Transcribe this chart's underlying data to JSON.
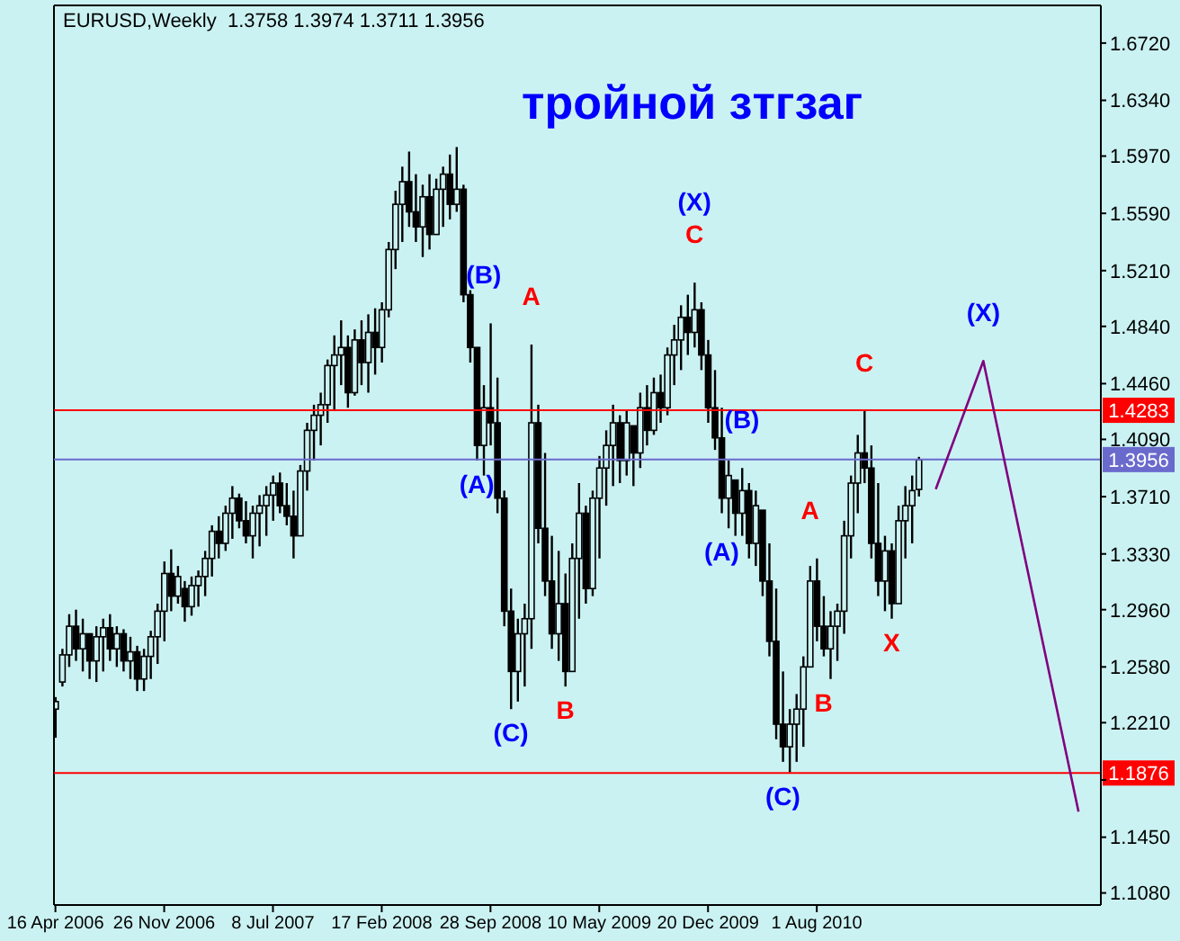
{
  "chart_data": {
    "type": "candlestick",
    "title": "тройной зтгзаг",
    "subtitle": "EURUSD,Weekly  1.3758 1.3974 1.3711 1.3956",
    "color": "#000000",
    "x": [
      "2006-04-16",
      "2006-04-30",
      "2006-05-14",
      "2006-05-28",
      "2006-06-11",
      "2006-06-25",
      "2006-07-09",
      "2006-07-23",
      "2006-08-06",
      "2006-08-20",
      "2006-09-03",
      "2006-09-17",
      "2006-10-01",
      "2006-10-15",
      "2006-10-29",
      "2006-11-12",
      "2006-11-26",
      "2006-12-10",
      "2006-12-24",
      "2007-01-07",
      "2007-01-21",
      "2007-02-04",
      "2007-02-18",
      "2007-03-04",
      "2007-03-18",
      "2007-04-01",
      "2007-04-15",
      "2007-04-29",
      "2007-05-13",
      "2007-05-27",
      "2007-06-10",
      "2007-06-24",
      "2007-07-08",
      "2007-07-22",
      "2007-08-05",
      "2007-08-19",
      "2007-09-02",
      "2007-09-16",
      "2007-09-30",
      "2007-10-14",
      "2007-10-28",
      "2007-11-11",
      "2007-11-25",
      "2007-12-09",
      "2007-12-23",
      "2008-01-06",
      "2008-01-20",
      "2008-02-03",
      "2008-02-17",
      "2008-03-02",
      "2008-03-16",
      "2008-03-30",
      "2008-04-13",
      "2008-04-27",
      "2008-05-11",
      "2008-05-25",
      "2008-06-08",
      "2008-06-22",
      "2008-07-06",
      "2008-07-20",
      "2008-08-03",
      "2008-08-17",
      "2008-08-31",
      "2008-09-14",
      "2008-09-28",
      "2008-10-12",
      "2008-10-26",
      "2008-11-09",
      "2008-11-23",
      "2008-12-07",
      "2008-12-21",
      "2009-01-04",
      "2009-01-18",
      "2009-02-01",
      "2009-02-15",
      "2009-03-01",
      "2009-03-15",
      "2009-03-29",
      "2009-04-12",
      "2009-04-26",
      "2009-05-10",
      "2009-05-24",
      "2009-06-07",
      "2009-06-21",
      "2009-07-05",
      "2009-07-19",
      "2009-08-02",
      "2009-08-16",
      "2009-08-30",
      "2009-09-13",
      "2009-09-27",
      "2009-10-11",
      "2009-10-25",
      "2009-11-08",
      "2009-11-22",
      "2009-12-06",
      "2009-12-20",
      "2010-01-03",
      "2010-01-17",
      "2010-01-31",
      "2010-02-14",
      "2010-02-28",
      "2010-03-14",
      "2010-03-28",
      "2010-04-11",
      "2010-04-25",
      "2010-05-09",
      "2010-05-23",
      "2010-06-06",
      "2010-06-20",
      "2010-07-04",
      "2010-07-18",
      "2010-08-01",
      "2010-08-15",
      "2010-08-29",
      "2010-09-12",
      "2010-09-26",
      "2010-10-10",
      "2010-10-24",
      "2010-11-07",
      "2010-11-21",
      "2010-12-05",
      "2010-12-19",
      "2011-01-02",
      "2011-01-16",
      "2011-01-30",
      "2011-02-13",
      "2011-02-27"
    ],
    "ohlc": [
      [
        1.23,
        1.238,
        1.211,
        1.235
      ],
      [
        1.248,
        1.27,
        1.245,
        1.266
      ],
      [
        1.266,
        1.293,
        1.258,
        1.285
      ],
      [
        1.285,
        1.296,
        1.262,
        1.27
      ],
      [
        1.27,
        1.29,
        1.255,
        1.28
      ],
      [
        1.28,
        1.28,
        1.25,
        1.262
      ],
      [
        1.262,
        1.285,
        1.248,
        1.278
      ],
      [
        1.278,
        1.29,
        1.255,
        1.284
      ],
      [
        1.284,
        1.293,
        1.262,
        1.27
      ],
      [
        1.27,
        1.285,
        1.258,
        1.28
      ],
      [
        1.28,
        1.283,
        1.255,
        1.262
      ],
      [
        1.262,
        1.278,
        1.25,
        1.268
      ],
      [
        1.268,
        1.272,
        1.242,
        1.25
      ],
      [
        1.25,
        1.27,
        1.242,
        1.265
      ],
      [
        1.265,
        1.282,
        1.25,
        1.278
      ],
      [
        1.278,
        1.3,
        1.26,
        1.295
      ],
      [
        1.295,
        1.328,
        1.275,
        1.32
      ],
      [
        1.32,
        1.336,
        1.295,
        1.305
      ],
      [
        1.305,
        1.325,
        1.3,
        1.318
      ],
      [
        1.31,
        1.315,
        1.288,
        1.298
      ],
      [
        1.298,
        1.318,
        1.292,
        1.312
      ],
      [
        1.312,
        1.322,
        1.298,
        1.318
      ],
      [
        1.318,
        1.335,
        1.305,
        1.33
      ],
      [
        1.33,
        1.352,
        1.318,
        1.348
      ],
      [
        1.348,
        1.358,
        1.33,
        1.34
      ],
      [
        1.34,
        1.365,
        1.335,
        1.36
      ],
      [
        1.36,
        1.378,
        1.343,
        1.37
      ],
      [
        1.37,
        1.373,
        1.35,
        1.355
      ],
      [
        1.355,
        1.368,
        1.34,
        1.345
      ],
      [
        1.345,
        1.365,
        1.33,
        1.36
      ],
      [
        1.36,
        1.372,
        1.338,
        1.365
      ],
      [
        1.365,
        1.378,
        1.345,
        1.372
      ],
      [
        1.372,
        1.385,
        1.355,
        1.38
      ],
      [
        1.38,
        1.387,
        1.36,
        1.365
      ],
      [
        1.365,
        1.38,
        1.352,
        1.358
      ],
      [
        1.358,
        1.375,
        1.33,
        1.345
      ],
      [
        1.345,
        1.392,
        1.345,
        1.388
      ],
      [
        1.388,
        1.42,
        1.375,
        1.415
      ],
      [
        1.415,
        1.432,
        1.395,
        1.425
      ],
      [
        1.425,
        1.44,
        1.405,
        1.432
      ],
      [
        1.432,
        1.462,
        1.42,
        1.458
      ],
      [
        1.458,
        1.478,
        1.428,
        1.465
      ],
      [
        1.465,
        1.488,
        1.445,
        1.47
      ],
      [
        1.47,
        1.478,
        1.43,
        1.44
      ],
      [
        1.44,
        1.482,
        1.438,
        1.475
      ],
      [
        1.475,
        1.488,
        1.445,
        1.46
      ],
      [
        1.46,
        1.492,
        1.44,
        1.48
      ],
      [
        1.48,
        1.496,
        1.452,
        1.47
      ],
      [
        1.47,
        1.5,
        1.46,
        1.495
      ],
      [
        1.495,
        1.54,
        1.49,
        1.535
      ],
      [
        1.535,
        1.574,
        1.522,
        1.565
      ],
      [
        1.565,
        1.59,
        1.54,
        1.58
      ],
      [
        1.58,
        1.6,
        1.55,
        1.56
      ],
      [
        1.56,
        1.585,
        1.54,
        1.55
      ],
      [
        1.55,
        1.578,
        1.53,
        1.57
      ],
      [
        1.57,
        1.585,
        1.535,
        1.545
      ],
      [
        1.545,
        1.582,
        1.545,
        1.575
      ],
      [
        1.575,
        1.59,
        1.55,
        1.585
      ],
      [
        1.585,
        1.598,
        1.555,
        1.565
      ],
      [
        1.565,
        1.603,
        1.56,
        1.575
      ],
      [
        1.575,
        1.578,
        1.5,
        1.505
      ],
      [
        1.505,
        1.508,
        1.46,
        1.47
      ],
      [
        1.47,
        1.47,
        1.395,
        1.405
      ],
      [
        1.405,
        1.445,
        1.385,
        1.43
      ],
      [
        1.43,
        1.486,
        1.405,
        1.42
      ],
      [
        1.42,
        1.45,
        1.36,
        1.37
      ],
      [
        1.37,
        1.375,
        1.285,
        1.295
      ],
      [
        1.295,
        1.31,
        1.23,
        1.255
      ],
      [
        1.255,
        1.29,
        1.235,
        1.28
      ],
      [
        1.28,
        1.3,
        1.245,
        1.29
      ],
      [
        1.29,
        1.472,
        1.27,
        1.42
      ],
      [
        1.42,
        1.432,
        1.34,
        1.35
      ],
      [
        1.35,
        1.4,
        1.305,
        1.315
      ],
      [
        1.315,
        1.345,
        1.27,
        1.28
      ],
      [
        1.28,
        1.335,
        1.262,
        1.3
      ],
      [
        1.3,
        1.32,
        1.245,
        1.255
      ],
      [
        1.255,
        1.34,
        1.255,
        1.33
      ],
      [
        1.33,
        1.38,
        1.29,
        1.36
      ],
      [
        1.36,
        1.365,
        1.3,
        1.31
      ],
      [
        1.31,
        1.375,
        1.305,
        1.37
      ],
      [
        1.37,
        1.398,
        1.33,
        1.39
      ],
      [
        1.39,
        1.415,
        1.365,
        1.405
      ],
      [
        1.405,
        1.432,
        1.378,
        1.42
      ],
      [
        1.42,
        1.425,
        1.38,
        1.395
      ],
      [
        1.395,
        1.428,
        1.385,
        1.42
      ],
      [
        1.418,
        1.418,
        1.378,
        1.4
      ],
      [
        1.4,
        1.44,
        1.39,
        1.43
      ],
      [
        1.43,
        1.445,
        1.405,
        1.415
      ],
      [
        1.415,
        1.45,
        1.412,
        1.44
      ],
      [
        1.44,
        1.452,
        1.42,
        1.43
      ],
      [
        1.43,
        1.47,
        1.425,
        1.465
      ],
      [
        1.465,
        1.485,
        1.445,
        1.475
      ],
      [
        1.475,
        1.498,
        1.455,
        1.49
      ],
      [
        1.49,
        1.505,
        1.465,
        1.48
      ],
      [
        1.48,
        1.513,
        1.47,
        1.495
      ],
      [
        1.495,
        1.5,
        1.455,
        1.465
      ],
      [
        1.465,
        1.475,
        1.42,
        1.43
      ],
      [
        1.43,
        1.455,
        1.402,
        1.41
      ],
      [
        1.41,
        1.43,
        1.36,
        1.37
      ],
      [
        1.37,
        1.395,
        1.35,
        1.385
      ],
      [
        1.382,
        1.382,
        1.345,
        1.36
      ],
      [
        1.36,
        1.39,
        1.345,
        1.375
      ],
      [
        1.375,
        1.38,
        1.33,
        1.34
      ],
      [
        1.34,
        1.375,
        1.325,
        1.365
      ],
      [
        1.362,
        1.362,
        1.305,
        1.315
      ],
      [
        1.315,
        1.34,
        1.265,
        1.275
      ],
      [
        1.275,
        1.31,
        1.21,
        1.22
      ],
      [
        1.22,
        1.255,
        1.195,
        1.205
      ],
      [
        1.205,
        1.23,
        1.188,
        1.22
      ],
      [
        1.22,
        1.24,
        1.195,
        1.23
      ],
      [
        1.23,
        1.265,
        1.205,
        1.258
      ],
      [
        1.258,
        1.325,
        1.258,
        1.315
      ],
      [
        1.315,
        1.33,
        1.275,
        1.285
      ],
      [
        1.285,
        1.305,
        1.265,
        1.27
      ],
      [
        1.27,
        1.295,
        1.25,
        1.285
      ],
      [
        1.285,
        1.3,
        1.262,
        1.295
      ],
      [
        1.295,
        1.355,
        1.28,
        1.345
      ],
      [
        1.345,
        1.385,
        1.33,
        1.38
      ],
      [
        1.38,
        1.412,
        1.36,
        1.4
      ],
      [
        1.4,
        1.428,
        1.38,
        1.39
      ],
      [
        1.39,
        1.405,
        1.33,
        1.34
      ],
      [
        1.34,
        1.38,
        1.305,
        1.315
      ],
      [
        1.315,
        1.345,
        1.295,
        1.335
      ],
      [
        1.335,
        1.34,
        1.29,
        1.3
      ],
      [
        1.3,
        1.365,
        1.3,
        1.355
      ],
      [
        1.355,
        1.378,
        1.33,
        1.365
      ],
      [
        1.365,
        1.385,
        1.34,
        1.375
      ],
      [
        1.3758,
        1.3974,
        1.3711,
        1.3956
      ]
    ],
    "series": [
      {
        "type": "line",
        "color": "#800080",
        "x": [
          "2011-04-03",
          "2011-07-10",
          "2012-01-22"
        ],
        "values": [
          1.376,
          1.461,
          1.162
        ]
      }
    ],
    "xlim": [
      "2006-04-13",
      "2012-03-08"
    ],
    "xticks": [
      {
        "value": "2006-04-16",
        "label": "16 Apr 2006"
      },
      {
        "value": "2006-11-26",
        "label": "26 Nov 2006"
      },
      {
        "value": "2007-07-08",
        "label": "8 Jul 2007"
      },
      {
        "value": "2008-02-17",
        "label": "17 Feb 2008"
      },
      {
        "value": "2008-09-28",
        "label": "28 Sep 2008"
      },
      {
        "value": "2009-05-10",
        "label": "10 May 2009"
      },
      {
        "value": "2009-12-20",
        "label": "20 Dec 2009"
      },
      {
        "value": "2010-08-01",
        "label": "1 Aug 2010"
      }
    ],
    "ylim": [
      1.1,
      1.697
    ],
    "yticks": [
      {
        "value": 1.108,
        "label": "1.1080"
      },
      {
        "value": 1.145,
        "label": "1.1450"
      },
      {
        "value": 1.183,
        "label": null
      },
      {
        "value": 1.221,
        "label": "1.2210"
      },
      {
        "value": 1.258,
        "label": "1.2580"
      },
      {
        "value": 1.296,
        "label": "1.2960"
      },
      {
        "value": 1.333,
        "label": "1.3330"
      },
      {
        "value": 1.371,
        "label": "1.3710"
      },
      {
        "value": 1.409,
        "label": "1.4090"
      },
      {
        "value": 1.446,
        "label": "1.4460"
      },
      {
        "value": 1.484,
        "label": "1.4840"
      },
      {
        "value": 1.521,
        "label": "1.5210"
      },
      {
        "value": 1.559,
        "label": "1.5590"
      },
      {
        "value": 1.597,
        "label": "1.5970"
      },
      {
        "value": 1.634,
        "label": "1.6340"
      },
      {
        "value": 1.672,
        "label": "1.6720"
      }
    ],
    "ref_lines": [
      {
        "axis": "y",
        "value": 1.4283,
        "label": "1.4283",
        "color": "#ff0000"
      },
      {
        "axis": "y",
        "value": 1.3956,
        "label": "1.3956",
        "color": "#6a6acd"
      },
      {
        "axis": "y",
        "value": 1.1876,
        "label": "1.1876",
        "color": "#ff0000"
      }
    ],
    "annotations": [
      {
        "text": "(A)",
        "x": "2008-08-31",
        "y": 1.395
      },
      {
        "text": "(B)",
        "x": "2008-09-14",
        "y": 1.486
      },
      {
        "text": "(C)",
        "x": "2008-11-09",
        "y": 1.23
      },
      {
        "text": "A",
        "x": "2008-12-21",
        "y": 1.472
      },
      {
        "text": "B",
        "x": "2009-03-01",
        "y": 1.245
      },
      {
        "text": "C",
        "x": "2009-11-22",
        "y": 1.513
      },
      {
        "text": "(X)",
        "x": "2009-11-22",
        "y": 1.513
      },
      {
        "text": "(A)",
        "x": "2010-01-17",
        "y": 1.35
      },
      {
        "text": "(B)",
        "x": "2010-02-28",
        "y": 1.39
      },
      {
        "text": "(C)",
        "x": "2010-05-23",
        "y": 1.188
      },
      {
        "text": "A",
        "x": "2010-07-18",
        "y": 1.33
      },
      {
        "text": "B",
        "x": "2010-08-15",
        "y": 1.25
      },
      {
        "text": "C",
        "x": "2010-11-07",
        "y": 1.428
      },
      {
        "text": "X",
        "x": "2011-01-02",
        "y": 1.29
      },
      {
        "text": "(X)",
        "x": "2011-07-10",
        "y": 1.461
      }
    ]
  }
}
